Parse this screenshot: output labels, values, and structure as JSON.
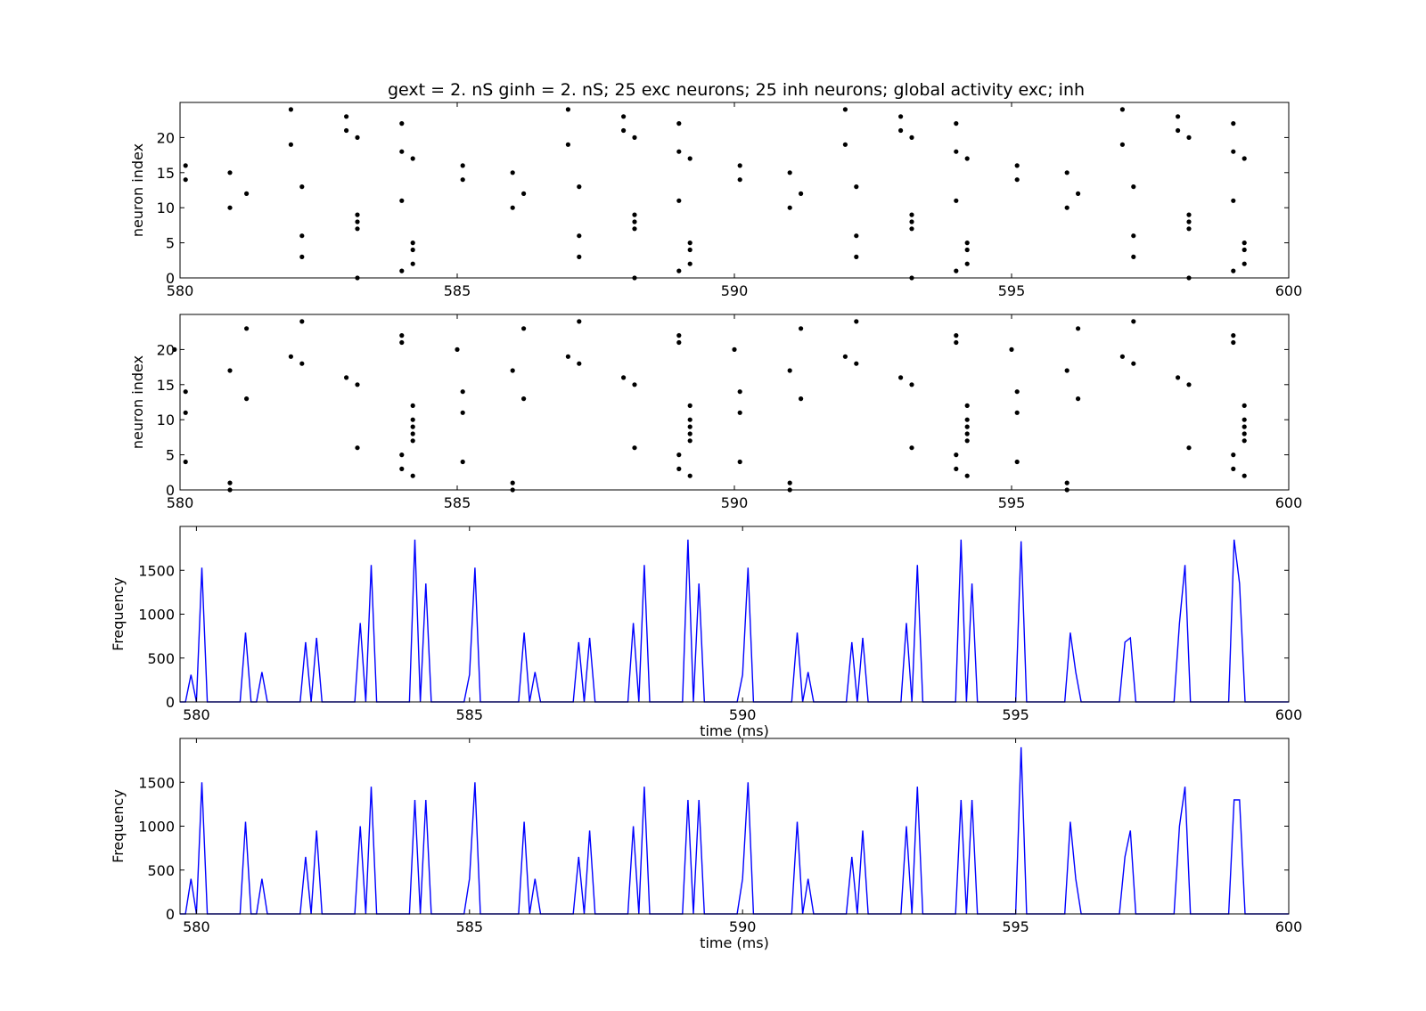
{
  "figure": {
    "title": "gext = 2. nS ginh = 2. nS; 25 exc neurons; 25 inh neurons; global activity exc; inh",
    "colors": {
      "line": "#0000ff",
      "dots": "#000000",
      "frame": "#000000"
    }
  },
  "chart_data": [
    {
      "type": "scatter",
      "title": "",
      "xlabel": "",
      "ylabel": "neuron index",
      "xlim": [
        580,
        600
      ],
      "ylim": [
        0,
        25
      ],
      "xticks": [
        580,
        585,
        590,
        595,
        600
      ],
      "yticks": [
        0,
        5,
        10,
        15,
        20
      ],
      "points": [
        [
          580.1,
          16
        ],
        [
          580.1,
          14
        ],
        [
          580.9,
          15
        ],
        [
          580.9,
          10
        ],
        [
          581.2,
          12
        ],
        [
          582.0,
          24
        ],
        [
          582.0,
          19
        ],
        [
          582.2,
          13
        ],
        [
          582.2,
          6
        ],
        [
          582.2,
          3
        ],
        [
          583.0,
          23
        ],
        [
          583.0,
          21
        ],
        [
          583.2,
          20
        ],
        [
          583.2,
          9
        ],
        [
          583.2,
          8
        ],
        [
          583.2,
          7
        ],
        [
          583.2,
          0
        ],
        [
          584.0,
          22
        ],
        [
          584.0,
          18
        ],
        [
          584.0,
          11
        ],
        [
          584.0,
          1
        ],
        [
          584.2,
          17
        ],
        [
          584.2,
          5
        ],
        [
          584.2,
          4
        ],
        [
          584.2,
          2
        ],
        [
          585.1,
          16
        ],
        [
          585.1,
          14
        ],
        [
          586.0,
          15
        ],
        [
          586.0,
          10
        ],
        [
          586.2,
          12
        ],
        [
          587.0,
          24
        ],
        [
          587.0,
          19
        ],
        [
          587.2,
          13
        ],
        [
          587.2,
          6
        ],
        [
          587.2,
          3
        ],
        [
          588.0,
          23
        ],
        [
          588.0,
          21
        ],
        [
          588.2,
          20
        ],
        [
          588.2,
          9
        ],
        [
          588.2,
          8
        ],
        [
          588.2,
          7
        ],
        [
          588.2,
          0
        ],
        [
          589.0,
          22
        ],
        [
          589.0,
          18
        ],
        [
          589.0,
          11
        ],
        [
          589.0,
          1
        ],
        [
          589.2,
          17
        ],
        [
          589.2,
          5
        ],
        [
          589.2,
          4
        ],
        [
          589.2,
          2
        ],
        [
          590.1,
          16
        ],
        [
          590.1,
          14
        ],
        [
          591.0,
          15
        ],
        [
          591.0,
          10
        ],
        [
          591.2,
          12
        ],
        [
          592.0,
          24
        ],
        [
          592.0,
          19
        ],
        [
          592.2,
          13
        ],
        [
          592.2,
          6
        ],
        [
          592.2,
          3
        ],
        [
          593.0,
          23
        ],
        [
          593.0,
          21
        ],
        [
          593.2,
          20
        ],
        [
          593.2,
          9
        ],
        [
          593.2,
          8
        ],
        [
          593.2,
          7
        ],
        [
          593.2,
          0
        ],
        [
          594.0,
          22
        ],
        [
          594.0,
          18
        ],
        [
          594.0,
          11
        ],
        [
          594.0,
          1
        ],
        [
          594.2,
          17
        ],
        [
          594.2,
          5
        ],
        [
          594.2,
          4
        ],
        [
          594.2,
          2
        ],
        [
          595.1,
          16
        ],
        [
          595.1,
          14
        ],
        [
          596.0,
          15
        ],
        [
          596.0,
          10
        ],
        [
          596.2,
          12
        ],
        [
          597.0,
          24
        ],
        [
          597.0,
          19
        ],
        [
          597.2,
          13
        ],
        [
          597.2,
          6
        ],
        [
          597.2,
          3
        ],
        [
          598.0,
          23
        ],
        [
          598.0,
          21
        ],
        [
          598.2,
          20
        ],
        [
          598.2,
          9
        ],
        [
          598.2,
          8
        ],
        [
          598.2,
          7
        ],
        [
          598.2,
          0
        ],
        [
          599.0,
          22
        ],
        [
          599.0,
          18
        ],
        [
          599.0,
          11
        ],
        [
          599.0,
          1
        ],
        [
          599.2,
          17
        ],
        [
          599.2,
          5
        ],
        [
          599.2,
          4
        ],
        [
          599.2,
          2
        ]
      ]
    },
    {
      "type": "scatter",
      "title": "",
      "xlabel": "",
      "ylabel": "neuron index",
      "xlim": [
        580,
        600
      ],
      "ylim": [
        0,
        25
      ],
      "xticks": [
        580,
        585,
        590,
        595,
        600
      ],
      "yticks": [
        0,
        5,
        10,
        15,
        20
      ],
      "points": [
        [
          579.9,
          20
        ],
        [
          580.1,
          14
        ],
        [
          580.1,
          11
        ],
        [
          580.1,
          4
        ],
        [
          580.9,
          17
        ],
        [
          580.9,
          1
        ],
        [
          580.9,
          0
        ],
        [
          581.2,
          23
        ],
        [
          581.2,
          13
        ],
        [
          582.0,
          19
        ],
        [
          582.2,
          24
        ],
        [
          582.2,
          18
        ],
        [
          583.0,
          16
        ],
        [
          583.2,
          15
        ],
        [
          583.2,
          6
        ],
        [
          584.0,
          22
        ],
        [
          584.0,
          21
        ],
        [
          584.0,
          5
        ],
        [
          584.0,
          3
        ],
        [
          584.2,
          12
        ],
        [
          584.2,
          10
        ],
        [
          584.2,
          9
        ],
        [
          584.2,
          8
        ],
        [
          584.2,
          7
        ],
        [
          584.2,
          2
        ],
        [
          585.0,
          20
        ],
        [
          585.1,
          14
        ],
        [
          585.1,
          11
        ],
        [
          585.1,
          4
        ],
        [
          586.0,
          17
        ],
        [
          586.0,
          1
        ],
        [
          586.0,
          0
        ],
        [
          586.2,
          23
        ],
        [
          586.2,
          13
        ],
        [
          587.0,
          19
        ],
        [
          587.2,
          24
        ],
        [
          587.2,
          18
        ],
        [
          588.0,
          16
        ],
        [
          588.2,
          15
        ],
        [
          588.2,
          6
        ],
        [
          589.0,
          22
        ],
        [
          589.0,
          21
        ],
        [
          589.0,
          5
        ],
        [
          589.0,
          3
        ],
        [
          589.2,
          12
        ],
        [
          589.2,
          10
        ],
        [
          589.2,
          9
        ],
        [
          589.2,
          8
        ],
        [
          589.2,
          7
        ],
        [
          589.2,
          2
        ],
        [
          590.0,
          20
        ],
        [
          590.1,
          14
        ],
        [
          590.1,
          11
        ],
        [
          590.1,
          4
        ],
        [
          591.0,
          17
        ],
        [
          591.0,
          1
        ],
        [
          591.0,
          0
        ],
        [
          591.2,
          23
        ],
        [
          591.2,
          13
        ],
        [
          592.0,
          19
        ],
        [
          592.2,
          24
        ],
        [
          592.2,
          18
        ],
        [
          593.0,
          16
        ],
        [
          593.2,
          15
        ],
        [
          593.2,
          6
        ],
        [
          594.0,
          22
        ],
        [
          594.0,
          21
        ],
        [
          594.0,
          5
        ],
        [
          594.0,
          3
        ],
        [
          594.2,
          12
        ],
        [
          594.2,
          10
        ],
        [
          594.2,
          9
        ],
        [
          594.2,
          8
        ],
        [
          594.2,
          7
        ],
        [
          594.2,
          2
        ],
        [
          595.0,
          20
        ],
        [
          595.1,
          14
        ],
        [
          595.1,
          11
        ],
        [
          595.1,
          4
        ],
        [
          596.0,
          17
        ],
        [
          596.0,
          1
        ],
        [
          596.0,
          0
        ],
        [
          596.2,
          23
        ],
        [
          596.2,
          13
        ],
        [
          597.0,
          19
        ],
        [
          597.2,
          24
        ],
        [
          597.2,
          18
        ],
        [
          598.0,
          16
        ],
        [
          598.2,
          15
        ],
        [
          598.2,
          6
        ],
        [
          599.0,
          22
        ],
        [
          599.0,
          21
        ],
        [
          599.0,
          5
        ],
        [
          599.0,
          3
        ],
        [
          599.2,
          12
        ],
        [
          599.2,
          10
        ],
        [
          599.2,
          9
        ],
        [
          599.2,
          8
        ],
        [
          599.2,
          7
        ],
        [
          599.2,
          2
        ]
      ]
    },
    {
      "type": "line",
      "title": "",
      "xlabel": "time (ms)",
      "ylabel": "Frequency",
      "xlim": [
        579.7,
        600
      ],
      "ylim": [
        0,
        2000
      ],
      "xticks": [
        580,
        585,
        590,
        595,
        600
      ],
      "yticks": [
        0,
        500,
        1000,
        1500
      ],
      "series": [
        {
          "x": [
            579.7,
            579.8,
            579.9,
            580.0,
            580.1,
            580.2,
            580.8,
            580.9,
            581.0,
            581.1,
            581.2,
            581.3,
            581.9,
            582.0,
            582.1,
            582.2,
            582.3,
            582.9,
            583.0,
            583.1,
            583.2,
            583.3,
            583.9,
            584.0,
            584.1,
            584.2,
            584.3,
            584.9,
            585.0,
            585.1,
            585.2,
            585.9,
            586.0,
            586.1,
            586.2,
            586.3,
            586.9,
            587.0,
            587.1,
            587.2,
            587.3,
            587.9,
            588.0,
            588.1,
            588.2,
            588.3,
            588.9,
            589.0,
            589.1,
            589.2,
            589.3,
            589.9,
            590.0,
            590.1,
            590.2,
            590.9,
            591.0,
            591.1,
            591.2,
            591.3,
            591.9,
            592.0,
            592.1,
            592.2,
            592.3,
            592.9,
            593.0,
            593.1,
            593.2,
            593.3,
            593.9,
            594.0,
            594.1,
            594.2,
            594.3,
            594.9,
            595.0,
            595.1,
            595.2,
            595.9,
            596.0,
            596.1,
            596.2,
            596.9,
            597.0,
            597.1,
            597.2,
            597.9,
            598.0,
            598.1,
            598.2,
            598.9,
            599.0,
            599.1,
            599.2,
            599.3,
            600.0
          ],
          "values": [
            0,
            0,
            310,
            0,
            1530,
            0,
            0,
            790,
            0,
            0,
            340,
            0,
            0,
            680,
            0,
            730,
            0,
            0,
            900,
            0,
            1560,
            0,
            0,
            1850,
            0,
            1350,
            0,
            0,
            310,
            1530,
            0,
            0,
            790,
            0,
            340,
            0,
            0,
            680,
            0,
            730,
            0,
            0,
            900,
            0,
            1560,
            0,
            0,
            1850,
            0,
            1350,
            0,
            0,
            310,
            1530,
            0,
            0,
            790,
            0,
            340,
            0,
            0,
            680,
            0,
            730,
            0,
            0,
            900,
            0,
            1560,
            0,
            0,
            1850,
            0,
            1350,
            0,
            0,
            0,
            1830,
            0,
            0,
            790,
            340,
            0,
            0,
            680,
            730,
            0,
            0,
            900,
            1560,
            0,
            0,
            1850,
            1350,
            0,
            0,
            0
          ]
        }
      ]
    },
    {
      "type": "line",
      "title": "",
      "xlabel": "time (ms)",
      "ylabel": "Frequency",
      "xlim": [
        579.7,
        600
      ],
      "ylim": [
        0,
        2000
      ],
      "xticks": [
        580,
        585,
        590,
        595,
        600
      ],
      "yticks": [
        0,
        500,
        1000,
        1500
      ],
      "series": [
        {
          "x": [
            579.7,
            579.8,
            579.9,
            580.0,
            580.1,
            580.2,
            580.8,
            580.9,
            581.0,
            581.1,
            581.2,
            581.3,
            581.9,
            582.0,
            582.1,
            582.2,
            582.3,
            582.9,
            583.0,
            583.1,
            583.2,
            583.3,
            583.9,
            584.0,
            584.1,
            584.2,
            584.3,
            584.9,
            585.0,
            585.1,
            585.2,
            585.9,
            586.0,
            586.1,
            586.2,
            586.3,
            586.9,
            587.0,
            587.1,
            587.2,
            587.3,
            587.9,
            588.0,
            588.1,
            588.2,
            588.3,
            588.9,
            589.0,
            589.1,
            589.2,
            589.3,
            589.9,
            590.0,
            590.1,
            590.2,
            590.9,
            591.0,
            591.1,
            591.2,
            591.3,
            591.9,
            592.0,
            592.1,
            592.2,
            592.3,
            592.9,
            593.0,
            593.1,
            593.2,
            593.3,
            593.9,
            594.0,
            594.1,
            594.2,
            594.3,
            594.9,
            595.0,
            595.1,
            595.2,
            595.9,
            596.0,
            596.1,
            596.2,
            596.9,
            597.0,
            597.1,
            597.2,
            597.9,
            598.0,
            598.1,
            598.2,
            598.9,
            599.0,
            599.1,
            599.2,
            599.3,
            600.0
          ],
          "values": [
            0,
            0,
            400,
            0,
            1500,
            0,
            0,
            1050,
            0,
            0,
            400,
            0,
            0,
            650,
            0,
            950,
            0,
            0,
            1000,
            0,
            1450,
            0,
            0,
            1300,
            0,
            1300,
            0,
            0,
            400,
            1500,
            0,
            0,
            1050,
            0,
            400,
            0,
            0,
            650,
            0,
            950,
            0,
            0,
            1000,
            0,
            1450,
            0,
            0,
            1300,
            0,
            1300,
            0,
            0,
            400,
            1500,
            0,
            0,
            1050,
            0,
            400,
            0,
            0,
            650,
            0,
            950,
            0,
            0,
            1000,
            0,
            1450,
            0,
            0,
            1300,
            0,
            1300,
            0,
            0,
            0,
            1900,
            0,
            0,
            1050,
            400,
            0,
            0,
            650,
            950,
            0,
            0,
            1000,
            1450,
            0,
            0,
            1300,
            1300,
            0,
            0,
            0
          ]
        }
      ]
    }
  ]
}
